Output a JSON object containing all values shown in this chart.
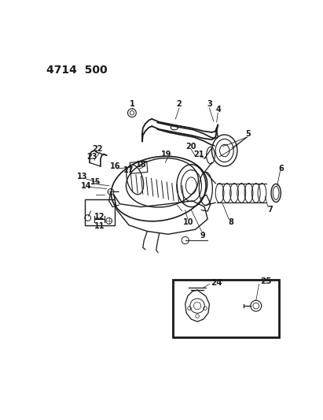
{
  "title": "4714  500",
  "bg_color": "#ffffff",
  "line_color": "#1a1a1a",
  "fig_width": 4.11,
  "fig_height": 5.33,
  "dpi": 100
}
